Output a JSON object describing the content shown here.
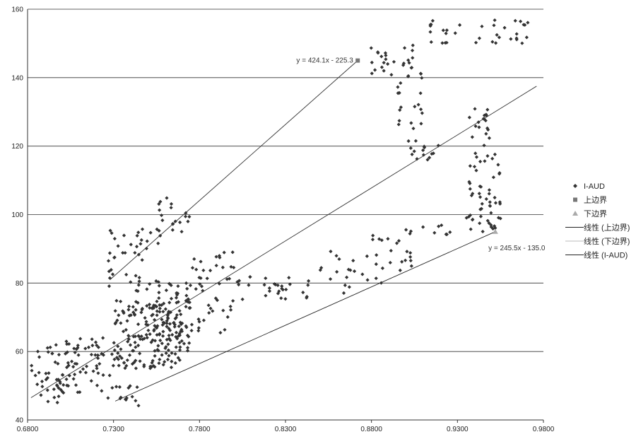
{
  "chart_data": {
    "type": "scatter",
    "title": "",
    "xlabel": "",
    "ylabel": "",
    "xlim": [
      0.68,
      0.98
    ],
    "ylim": [
      40,
      160
    ],
    "x_ticks": [
      "0.6800",
      "0.7300",
      "0.7800",
      "0.8300",
      "0.8800",
      "0.9300",
      "0.9800"
    ],
    "y_ticks": [
      "40",
      "60",
      "80",
      "100",
      "120",
      "140",
      "160"
    ],
    "grid": "horizontal",
    "legend_position": "right",
    "colors": {
      "points": "#333333",
      "upper": "#777777",
      "lower": "#aaaaaa",
      "lines": "#333333"
    },
    "series": [
      {
        "name": "I-AUD",
        "marker": "diamond",
        "clusters": [
          {
            "x": [
              0.682,
              0.705
            ],
            "y": [
              45,
              62
            ],
            "n": 45
          },
          {
            "x": [
              0.7,
              0.73
            ],
            "y": [
              48,
              64
            ],
            "n": 55
          },
          {
            "x": [
              0.726,
              0.745
            ],
            "y": [
              44,
              50
            ],
            "n": 15
          },
          {
            "x": [
              0.73,
              0.77
            ],
            "y": [
              55,
              75
            ],
            "n": 160
          },
          {
            "x": [
              0.75,
              0.775
            ],
            "y": [
              60,
              80
            ],
            "n": 70
          },
          {
            "x": [
              0.727,
              0.76
            ],
            "y": [
              77,
              97
            ],
            "n": 45
          },
          {
            "x": [
              0.755,
              0.775
            ],
            "y": [
              95,
              106
            ],
            "n": 20
          },
          {
            "x": [
              0.775,
              0.8
            ],
            "y": [
              65,
              90
            ],
            "n": 45
          },
          {
            "x": [
              0.8,
              0.845
            ],
            "y": [
              75,
              82
            ],
            "n": 30
          },
          {
            "x": [
              0.85,
              0.88
            ],
            "y": [
              76,
              90
            ],
            "n": 18
          },
          {
            "x": [
              0.88,
              0.905
            ],
            "y": [
              80,
              95
            ],
            "n": 22
          },
          {
            "x": [
              0.9,
              0.935
            ],
            "y": [
              94,
              97
            ],
            "n": 10
          },
          {
            "x": [
              0.875,
              0.905
            ],
            "y": [
              140,
              150
            ],
            "n": 25
          },
          {
            "x": [
              0.895,
              0.91
            ],
            "y": [
              125,
              145
            ],
            "n": 22
          },
          {
            "x": [
              0.9,
              0.92
            ],
            "y": [
              116,
              122
            ],
            "n": 15
          },
          {
            "x": [
              0.912,
              0.975
            ],
            "y": [
              150,
              157
            ],
            "n": 35
          },
          {
            "x": [
              0.935,
              0.955
            ],
            "y": [
              95,
              118
            ],
            "n": 55
          },
          {
            "x": [
              0.935,
              0.95
            ],
            "y": [
              120,
              132
            ],
            "n": 18
          }
        ]
      },
      {
        "name": "上边界",
        "marker": "square",
        "points": [
          {
            "x": 0.872,
            "y": 145.0
          }
        ]
      },
      {
        "name": "下边界",
        "marker": "triangle",
        "points": [
          {
            "x": 0.952,
            "y": 95.0
          }
        ]
      },
      {
        "name": "线性 (上边界)",
        "type": "line",
        "points": [
          {
            "x": 0.728,
            "y": 81.0
          },
          {
            "x": 0.872,
            "y": 145.0
          }
        ]
      },
      {
        "name": "线性 (下边界)",
        "type": "line",
        "points": [
          {
            "x": 0.731,
            "y": 45.5
          },
          {
            "x": 0.952,
            "y": 95.0
          }
        ]
      },
      {
        "name": "线性 (I-AUD)",
        "type": "line",
        "points": [
          {
            "x": 0.682,
            "y": 46.5
          },
          {
            "x": 0.976,
            "y": 137.5
          }
        ]
      }
    ],
    "annotations": [
      {
        "text": "y = 424.1x - 225.3",
        "x": 0.871,
        "y": 145.0
      },
      {
        "text": "y = 245.5x - 135.0",
        "x": 0.948,
        "y": 92.0
      }
    ]
  },
  "legend": {
    "items": [
      {
        "label": "I-AUD",
        "kind": "diamond"
      },
      {
        "label": "上边界",
        "kind": "square"
      },
      {
        "label": "下边界",
        "kind": "triangle"
      },
      {
        "label": "线性 (上边界)",
        "kind": "line-dark"
      },
      {
        "label": "线性 (下边界)",
        "kind": "line-light"
      },
      {
        "label": "线性 (I-AUD)",
        "kind": "line-dark"
      }
    ]
  }
}
